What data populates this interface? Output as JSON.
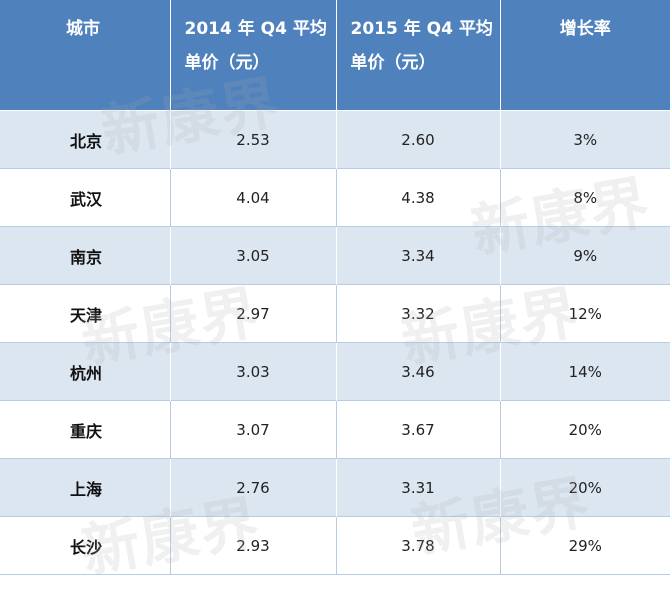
{
  "table": {
    "headers": {
      "city": "城市",
      "q4_2014": "2014 年 Q4 平均单价（元）",
      "q4_2015": "2015 年 Q4 平均单价（元）",
      "growth": "增长率"
    },
    "rows": [
      {
        "city": "北京",
        "q4_2014": "2.53",
        "q4_2015": "2.60",
        "growth": "3%"
      },
      {
        "city": "武汉",
        "q4_2014": "4.04",
        "q4_2015": "4.38",
        "growth": "8%"
      },
      {
        "city": "南京",
        "q4_2014": "3.05",
        "q4_2015": "3.34",
        "growth": "9%"
      },
      {
        "city": "天津",
        "q4_2014": "2.97",
        "q4_2015": "3.32",
        "growth": "12%"
      },
      {
        "city": "杭州",
        "q4_2014": "3.03",
        "q4_2015": "3.46",
        "growth": "14%"
      },
      {
        "city": "重庆",
        "q4_2014": "3.07",
        "q4_2015": "3.67",
        "growth": "20%"
      },
      {
        "city": "上海",
        "q4_2014": "2.76",
        "q4_2015": "3.31",
        "growth": "20%"
      },
      {
        "city": "长沙",
        "q4_2014": "2.93",
        "q4_2015": "3.78",
        "growth": "29%"
      }
    ]
  },
  "watermark": {
    "text": "新康界"
  },
  "colors": {
    "header_bg": "#4f81bd",
    "band_bg": "#dce6f1",
    "row_bg": "#ffffff"
  }
}
